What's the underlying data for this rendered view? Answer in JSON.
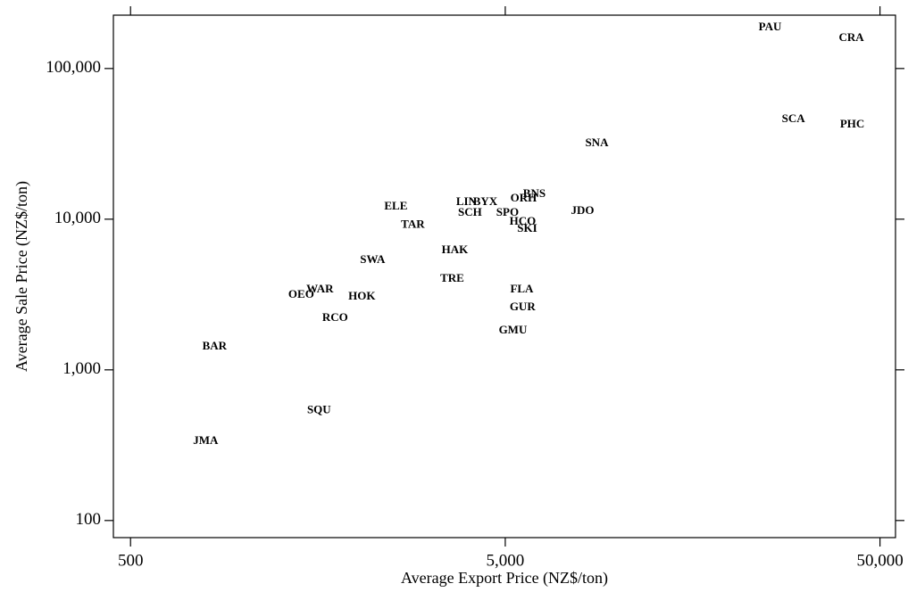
{
  "chart_data": {
    "type": "scatter",
    "xlabel": "Average Export Price (NZ$/ton)",
    "ylabel": "Average Sale Price (NZ$/ton)",
    "xscale": "log",
    "yscale": "log",
    "xlim": [
      450,
      55000
    ],
    "ylim": [
      77,
      226000
    ],
    "xticks": [
      500,
      {
        "value": 5000,
        "label": "5,000"
      },
      {
        "value": 50000,
        "label": "50,000"
      }
    ],
    "yticks": [
      100,
      {
        "value": 1000,
        "label": "1,000"
      },
      {
        "value": 10000,
        "label": "10,000"
      },
      {
        "value": 100000,
        "label": "100,000"
      }
    ],
    "color": "#000000",
    "labels": [
      "PAU",
      "CRA",
      "SCA",
      "PHC",
      "SNA",
      "JDO",
      "ORH",
      "BNS",
      "LIN",
      "BYX",
      "SCH",
      "SPO",
      "HCO",
      "SKI",
      "ELE",
      "TAR",
      "HAK",
      "SWA",
      "TRE",
      "FLA",
      "GUR",
      "GMU",
      "WAR",
      "OEO",
      "HOK",
      "RCO",
      "BAR",
      "SQU",
      "JMA"
    ],
    "x": [
      25450,
      41950,
      29370,
      42170,
      8776,
      8038,
      5596,
      5977,
      3938,
      4420,
      4025,
      5070,
      5566,
      5720,
      2553,
      2833,
      3667,
      2213,
      3608,
      5535,
      5560,
      5240,
      1601,
      1427,
      2072,
      1757,
      838,
      1592,
      793
    ],
    "values": [
      187000,
      158900,
      46000,
      42400,
      31850,
      11300,
      13680,
      14650,
      12950,
      12950,
      10990,
      10990,
      9600,
      8610,
      12100,
      9100,
      6210,
      5345,
      4015,
      3410,
      2597,
      1820,
      3410,
      3140,
      3055,
      2204,
      1425,
      535,
      336
    ]
  }
}
